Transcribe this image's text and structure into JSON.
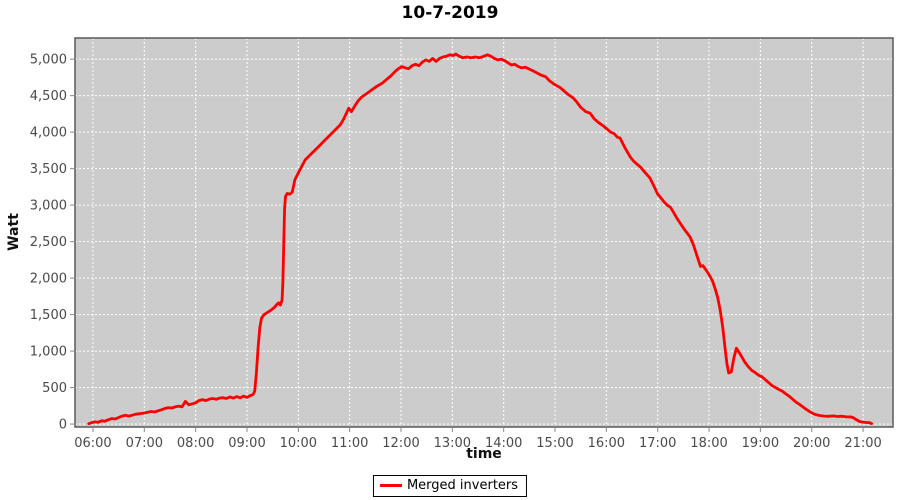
{
  "chart_data": {
    "type": "line",
    "title": "10-7-2019",
    "xlabel": "time",
    "ylabel": "Watt",
    "xlim": [
      "05:39",
      "21:35"
    ],
    "ylim": [
      -40,
      5290
    ],
    "grid": true,
    "x_ticks": [
      "06:00",
      "07:00",
      "08:00",
      "09:00",
      "10:00",
      "11:00",
      "12:00",
      "13:00",
      "14:00",
      "15:00",
      "16:00",
      "17:00",
      "18:00",
      "19:00",
      "20:00",
      "21:00"
    ],
    "y_ticks": [
      [
        0,
        "0"
      ],
      [
        500,
        "500"
      ],
      [
        1000,
        "1,000"
      ],
      [
        1500,
        "1,500"
      ],
      [
        2000,
        "2,000"
      ],
      [
        2500,
        "2,500"
      ],
      [
        3000,
        "3,000"
      ],
      [
        3500,
        "3,500"
      ],
      [
        4000,
        "4,000"
      ],
      [
        4500,
        "4,500"
      ],
      [
        5000,
        "5,000"
      ]
    ],
    "legend": {
      "position": "bottom",
      "entries": [
        {
          "label": "Merged inverters",
          "color": "#ff0000"
        }
      ]
    },
    "colors": {
      "plot_bg": "#cccccc",
      "grid": "#ffffff",
      "axis_border": "#595959",
      "tick_mark": "#8a8a8a",
      "tick_label": "#4a4a4a",
      "series": "#ff0000"
    },
    "series": [
      {
        "name": "Merged inverters",
        "color": "#ff0000",
        "points": [
          [
            "05:55",
            5
          ],
          [
            "05:58",
            18
          ],
          [
            "06:02",
            30
          ],
          [
            "06:06",
            25
          ],
          [
            "06:10",
            45
          ],
          [
            "06:14",
            40
          ],
          [
            "06:18",
            60
          ],
          [
            "06:22",
            75
          ],
          [
            "06:26",
            70
          ],
          [
            "06:30",
            90
          ],
          [
            "06:34",
            110
          ],
          [
            "06:38",
            120
          ],
          [
            "06:42",
            110
          ],
          [
            "06:46",
            122
          ],
          [
            "06:50",
            135
          ],
          [
            "06:55",
            142
          ],
          [
            "07:00",
            152
          ],
          [
            "07:04",
            162
          ],
          [
            "07:08",
            172
          ],
          [
            "07:12",
            166
          ],
          [
            "07:16",
            182
          ],
          [
            "07:20",
            196
          ],
          [
            "07:24",
            214
          ],
          [
            "07:28",
            226
          ],
          [
            "07:32",
            220
          ],
          [
            "07:36",
            236
          ],
          [
            "07:40",
            246
          ],
          [
            "07:44",
            236
          ],
          [
            "07:48",
            312
          ],
          [
            "07:52",
            264
          ],
          [
            "07:56",
            276
          ],
          [
            "08:00",
            292
          ],
          [
            "08:04",
            322
          ],
          [
            "08:08",
            336
          ],
          [
            "08:12",
            322
          ],
          [
            "08:16",
            342
          ],
          [
            "08:20",
            350
          ],
          [
            "08:24",
            340
          ],
          [
            "08:28",
            356
          ],
          [
            "08:32",
            362
          ],
          [
            "08:36",
            350
          ],
          [
            "08:40",
            372
          ],
          [
            "08:44",
            356
          ],
          [
            "08:48",
            376
          ],
          [
            "08:52",
            360
          ],
          [
            "08:56",
            382
          ],
          [
            "09:00",
            366
          ],
          [
            "09:04",
            392
          ],
          [
            "09:07",
            402
          ],
          [
            "09:09",
            450
          ],
          [
            "09:11",
            700
          ],
          [
            "09:13",
            1050
          ],
          [
            "09:15",
            1320
          ],
          [
            "09:17",
            1450
          ],
          [
            "09:20",
            1500
          ],
          [
            "09:24",
            1530
          ],
          [
            "09:28",
            1560
          ],
          [
            "09:32",
            1600
          ],
          [
            "09:35",
            1640
          ],
          [
            "09:37",
            1660
          ],
          [
            "09:39",
            1630
          ],
          [
            "09:41",
            1700
          ],
          [
            "09:42",
            1950
          ],
          [
            "09:43",
            2500
          ],
          [
            "09:44",
            2950
          ],
          [
            "09:45",
            3120
          ],
          [
            "09:47",
            3160
          ],
          [
            "09:50",
            3150
          ],
          [
            "09:53",
            3180
          ],
          [
            "09:56",
            3350
          ],
          [
            "10:00",
            3440
          ],
          [
            "10:04",
            3530
          ],
          [
            "10:08",
            3620
          ],
          [
            "10:14",
            3690
          ],
          [
            "10:20",
            3760
          ],
          [
            "10:26",
            3830
          ],
          [
            "10:31",
            3890
          ],
          [
            "10:37",
            3960
          ],
          [
            "10:43",
            4030
          ],
          [
            "10:49",
            4100
          ],
          [
            "10:53",
            4180
          ],
          [
            "10:57",
            4280
          ],
          [
            "10:59",
            4330
          ],
          [
            "11:02",
            4280
          ],
          [
            "11:06",
            4360
          ],
          [
            "11:10",
            4430
          ],
          [
            "11:14",
            4480
          ],
          [
            "11:20",
            4530
          ],
          [
            "11:26",
            4580
          ],
          [
            "11:32",
            4630
          ],
          [
            "11:38",
            4670
          ],
          [
            "11:43",
            4720
          ],
          [
            "11:49",
            4780
          ],
          [
            "11:53",
            4830
          ],
          [
            "11:57",
            4870
          ],
          [
            "12:01",
            4900
          ],
          [
            "12:05",
            4880
          ],
          [
            "12:09",
            4870
          ],
          [
            "12:13",
            4910
          ],
          [
            "12:17",
            4930
          ],
          [
            "12:21",
            4910
          ],
          [
            "12:25",
            4960
          ],
          [
            "12:29",
            4990
          ],
          [
            "12:33",
            4970
          ],
          [
            "12:37",
            5010
          ],
          [
            "12:41",
            4970
          ],
          [
            "12:45",
            5010
          ],
          [
            "12:49",
            5030
          ],
          [
            "12:53",
            5040
          ],
          [
            "12:57",
            5060
          ],
          [
            "13:01",
            5050
          ],
          [
            "13:04",
            5070
          ],
          [
            "13:08",
            5040
          ],
          [
            "13:12",
            5020
          ],
          [
            "13:17",
            5030
          ],
          [
            "13:22",
            5020
          ],
          [
            "13:27",
            5030
          ],
          [
            "13:32",
            5020
          ],
          [
            "13:37",
            5040
          ],
          [
            "13:41",
            5060
          ],
          [
            "13:45",
            5040
          ],
          [
            "13:49",
            5010
          ],
          [
            "13:53",
            4990
          ],
          [
            "13:57",
            5000
          ],
          [
            "14:01",
            4980
          ],
          [
            "14:05",
            4950
          ],
          [
            "14:09",
            4920
          ],
          [
            "14:13",
            4930
          ],
          [
            "14:17",
            4900
          ],
          [
            "14:21",
            4880
          ],
          [
            "14:25",
            4890
          ],
          [
            "14:29",
            4870
          ],
          [
            "14:34",
            4840
          ],
          [
            "14:39",
            4810
          ],
          [
            "14:44",
            4780
          ],
          [
            "14:49",
            4760
          ],
          [
            "14:54",
            4700
          ],
          [
            "15:00",
            4650
          ],
          [
            "15:06",
            4610
          ],
          [
            "15:11",
            4560
          ],
          [
            "15:16",
            4510
          ],
          [
            "15:21",
            4470
          ],
          [
            "15:25",
            4420
          ],
          [
            "15:30",
            4340
          ],
          [
            "15:36",
            4280
          ],
          [
            "15:41",
            4260
          ],
          [
            "15:46",
            4180
          ],
          [
            "15:51",
            4130
          ],
          [
            "15:56",
            4090
          ],
          [
            "16:00",
            4050
          ],
          [
            "16:05",
            4000
          ],
          [
            "16:09",
            3980
          ],
          [
            "16:13",
            3930
          ],
          [
            "16:16",
            3920
          ],
          [
            "16:19",
            3850
          ],
          [
            "16:22",
            3780
          ],
          [
            "16:25",
            3720
          ],
          [
            "16:28",
            3660
          ],
          [
            "16:32",
            3600
          ],
          [
            "16:36",
            3560
          ],
          [
            "16:40",
            3520
          ],
          [
            "16:45",
            3450
          ],
          [
            "16:51",
            3370
          ],
          [
            "16:56",
            3250
          ],
          [
            "17:00",
            3150
          ],
          [
            "17:03",
            3110
          ],
          [
            "17:07",
            3050
          ],
          [
            "17:11",
            3000
          ],
          [
            "17:15",
            2970
          ],
          [
            "17:19",
            2890
          ],
          [
            "17:23",
            2810
          ],
          [
            "17:27",
            2740
          ],
          [
            "17:31",
            2670
          ],
          [
            "17:35",
            2610
          ],
          [
            "17:38",
            2560
          ],
          [
            "17:42",
            2450
          ],
          [
            "17:46",
            2300
          ],
          [
            "17:50",
            2160
          ],
          [
            "17:53",
            2170
          ],
          [
            "17:56",
            2120
          ],
          [
            "18:00",
            2050
          ],
          [
            "18:04",
            1960
          ],
          [
            "18:07",
            1860
          ],
          [
            "18:10",
            1740
          ],
          [
            "18:13",
            1560
          ],
          [
            "18:16",
            1330
          ],
          [
            "18:19",
            1010
          ],
          [
            "18:21",
            820
          ],
          [
            "18:23",
            700
          ],
          [
            "18:26",
            715
          ],
          [
            "18:29",
            900
          ],
          [
            "18:32",
            1040
          ],
          [
            "18:35",
            985
          ],
          [
            "18:38",
            925
          ],
          [
            "18:42",
            845
          ],
          [
            "18:46",
            785
          ],
          [
            "18:50",
            735
          ],
          [
            "18:54",
            705
          ],
          [
            "18:58",
            668
          ],
          [
            "19:02",
            648
          ],
          [
            "19:06",
            605
          ],
          [
            "19:10",
            565
          ],
          [
            "19:14",
            525
          ],
          [
            "19:18",
            498
          ],
          [
            "19:22",
            472
          ],
          [
            "19:26",
            448
          ],
          [
            "19:30",
            412
          ],
          [
            "19:34",
            378
          ],
          [
            "19:38",
            338
          ],
          [
            "19:42",
            298
          ],
          [
            "19:46",
            268
          ],
          [
            "19:50",
            232
          ],
          [
            "19:54",
            198
          ],
          [
            "19:58",
            168
          ],
          [
            "20:02",
            142
          ],
          [
            "20:06",
            126
          ],
          [
            "20:10",
            116
          ],
          [
            "20:15",
            110
          ],
          [
            "20:20",
            106
          ],
          [
            "20:25",
            112
          ],
          [
            "20:30",
            104
          ],
          [
            "20:35",
            108
          ],
          [
            "20:40",
            100
          ],
          [
            "20:45",
            98
          ],
          [
            "20:48",
            92
          ],
          [
            "20:52",
            62
          ],
          [
            "20:56",
            36
          ],
          [
            "21:00",
            26
          ],
          [
            "21:04",
            22
          ],
          [
            "21:08",
            18
          ],
          [
            "21:10",
            6
          ]
        ]
      }
    ]
  }
}
